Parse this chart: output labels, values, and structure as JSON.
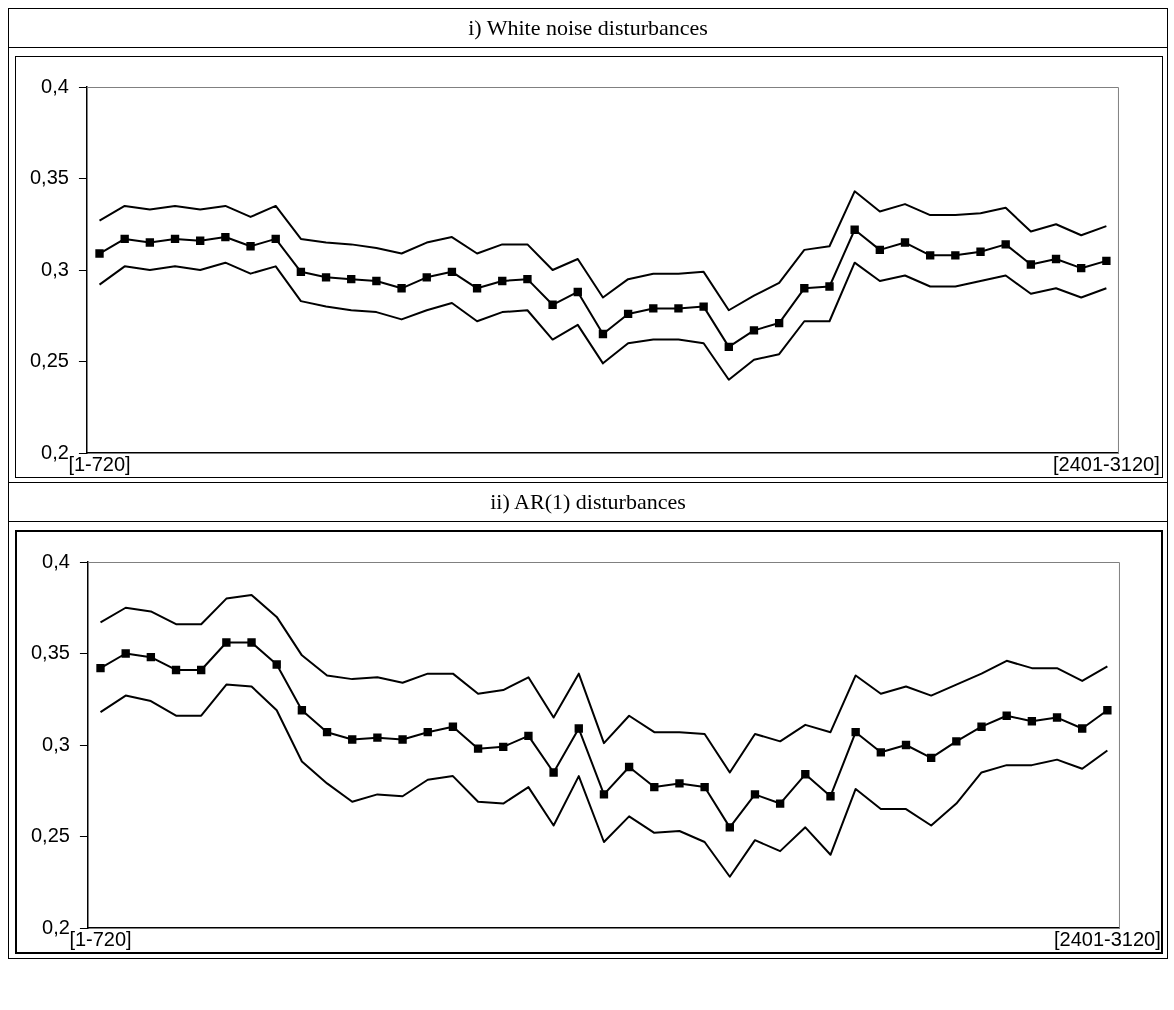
{
  "chart_data": [
    {
      "type": "line",
      "title": "i) White noise disturbances",
      "categories": [
        "[1-720]",
        null,
        null,
        null,
        null,
        null,
        null,
        null,
        null,
        null,
        null,
        null,
        null,
        null,
        null,
        null,
        null,
        null,
        null,
        null,
        null,
        null,
        null,
        null,
        null,
        null,
        null,
        null,
        null,
        null,
        null,
        null,
        null,
        null,
        null,
        null,
        null,
        null,
        null,
        null,
        "[2401-3120]"
      ],
      "series": [
        {
          "color": "#000000",
          "marker": "none",
          "values": [
            0.327,
            0.335,
            0.333,
            0.335,
            0.333,
            0.335,
            0.329,
            0.335,
            0.317,
            0.315,
            0.314,
            0.312,
            0.309,
            0.315,
            0.318,
            0.309,
            0.314,
            0.314,
            0.3,
            0.306,
            0.285,
            0.295,
            0.298,
            0.298,
            0.299,
            0.278,
            0.286,
            0.293,
            0.311,
            0.313,
            0.343,
            0.332,
            0.336,
            0.33,
            0.33,
            0.331,
            0.334,
            0.321,
            0.325,
            0.319,
            0.324
          ]
        },
        {
          "color": "#000000",
          "marker": "square",
          "values": [
            0.309,
            0.317,
            0.315,
            0.317,
            0.316,
            0.318,
            0.313,
            0.317,
            0.299,
            0.296,
            0.295,
            0.294,
            0.29,
            0.296,
            0.299,
            0.29,
            0.294,
            0.295,
            0.281,
            0.288,
            0.265,
            0.276,
            0.279,
            0.279,
            0.28,
            0.258,
            0.267,
            0.271,
            0.29,
            0.291,
            0.322,
            0.311,
            0.315,
            0.308,
            0.308,
            0.31,
            0.314,
            0.303,
            0.306,
            0.301,
            0.305
          ]
        },
        {
          "color": "#000000",
          "marker": "none",
          "values": [
            0.292,
            0.302,
            0.3,
            0.302,
            0.3,
            0.304,
            0.298,
            0.302,
            0.283,
            0.28,
            0.278,
            0.277,
            0.273,
            0.278,
            0.282,
            0.272,
            0.277,
            0.278,
            0.262,
            0.27,
            0.249,
            0.26,
            0.262,
            0.262,
            0.26,
            0.24,
            0.251,
            0.254,
            0.272,
            0.272,
            0.304,
            0.294,
            0.297,
            0.291,
            0.291,
            0.294,
            0.297,
            0.287,
            0.29,
            0.285,
            0.29
          ]
        }
      ],
      "ylim": [
        0.2,
        0.4
      ],
      "yticks": [
        {
          "value": 0.2,
          "label": "0,2"
        },
        {
          "value": 0.25,
          "label": "0,25"
        },
        {
          "value": 0.3,
          "label": "0,3"
        },
        {
          "value": 0.35,
          "label": "0,35"
        },
        {
          "value": 0.4,
          "label": "0,4"
        }
      ],
      "grid": false
    },
    {
      "type": "line",
      "title": "ii) AR(1) disturbances",
      "categories": [
        "[1-720]",
        null,
        null,
        null,
        null,
        null,
        null,
        null,
        null,
        null,
        null,
        null,
        null,
        null,
        null,
        null,
        null,
        null,
        null,
        null,
        null,
        null,
        null,
        null,
        null,
        null,
        null,
        null,
        null,
        null,
        null,
        null,
        null,
        null,
        null,
        null,
        null,
        null,
        null,
        null,
        "[2401-3120]"
      ],
      "series": [
        {
          "color": "#000000",
          "marker": "none",
          "values": [
            0.367,
            0.375,
            0.373,
            0.366,
            0.366,
            0.38,
            0.382,
            0.37,
            0.349,
            0.338,
            0.336,
            0.337,
            0.334,
            0.339,
            0.339,
            0.328,
            0.33,
            0.337,
            0.315,
            0.339,
            0.301,
            0.316,
            0.307,
            0.307,
            0.306,
            0.285,
            0.306,
            0.302,
            0.311,
            0.307,
            0.338,
            0.328,
            0.332,
            0.327,
            0.333,
            0.339,
            0.346,
            0.342,
            0.342,
            0.335,
            0.343
          ]
        },
        {
          "color": "#000000",
          "marker": "square",
          "values": [
            0.342,
            0.35,
            0.348,
            0.341,
            0.341,
            0.356,
            0.356,
            0.344,
            0.319,
            0.307,
            0.303,
            0.304,
            0.303,
            0.307,
            0.31,
            0.298,
            0.299,
            0.305,
            0.285,
            0.309,
            0.273,
            0.288,
            0.277,
            0.279,
            0.277,
            0.255,
            0.273,
            0.268,
            0.284,
            0.272,
            0.307,
            0.296,
            0.3,
            0.293,
            0.302,
            0.31,
            0.316,
            0.313,
            0.315,
            0.309,
            0.319
          ]
        },
        {
          "color": "#000000",
          "marker": "none",
          "values": [
            0.318,
            0.327,
            0.324,
            0.316,
            0.316,
            0.333,
            0.332,
            0.319,
            0.291,
            0.279,
            0.269,
            0.273,
            0.272,
            0.281,
            0.283,
            0.269,
            0.268,
            0.277,
            0.256,
            0.283,
            0.247,
            0.261,
            0.252,
            0.253,
            0.247,
            0.228,
            0.248,
            0.242,
            0.255,
            0.24,
            0.276,
            0.265,
            0.265,
            0.256,
            0.268,
            0.285,
            0.289,
            0.289,
            0.292,
            0.287,
            0.297
          ]
        }
      ],
      "ylim": [
        0.2,
        0.4
      ],
      "yticks": [
        {
          "value": 0.2,
          "label": "0,2"
        },
        {
          "value": 0.25,
          "label": "0,25"
        },
        {
          "value": 0.3,
          "label": "0,3"
        },
        {
          "value": 0.35,
          "label": "0,35"
        },
        {
          "value": 0.4,
          "label": "0,4"
        }
      ],
      "grid": false
    }
  ]
}
